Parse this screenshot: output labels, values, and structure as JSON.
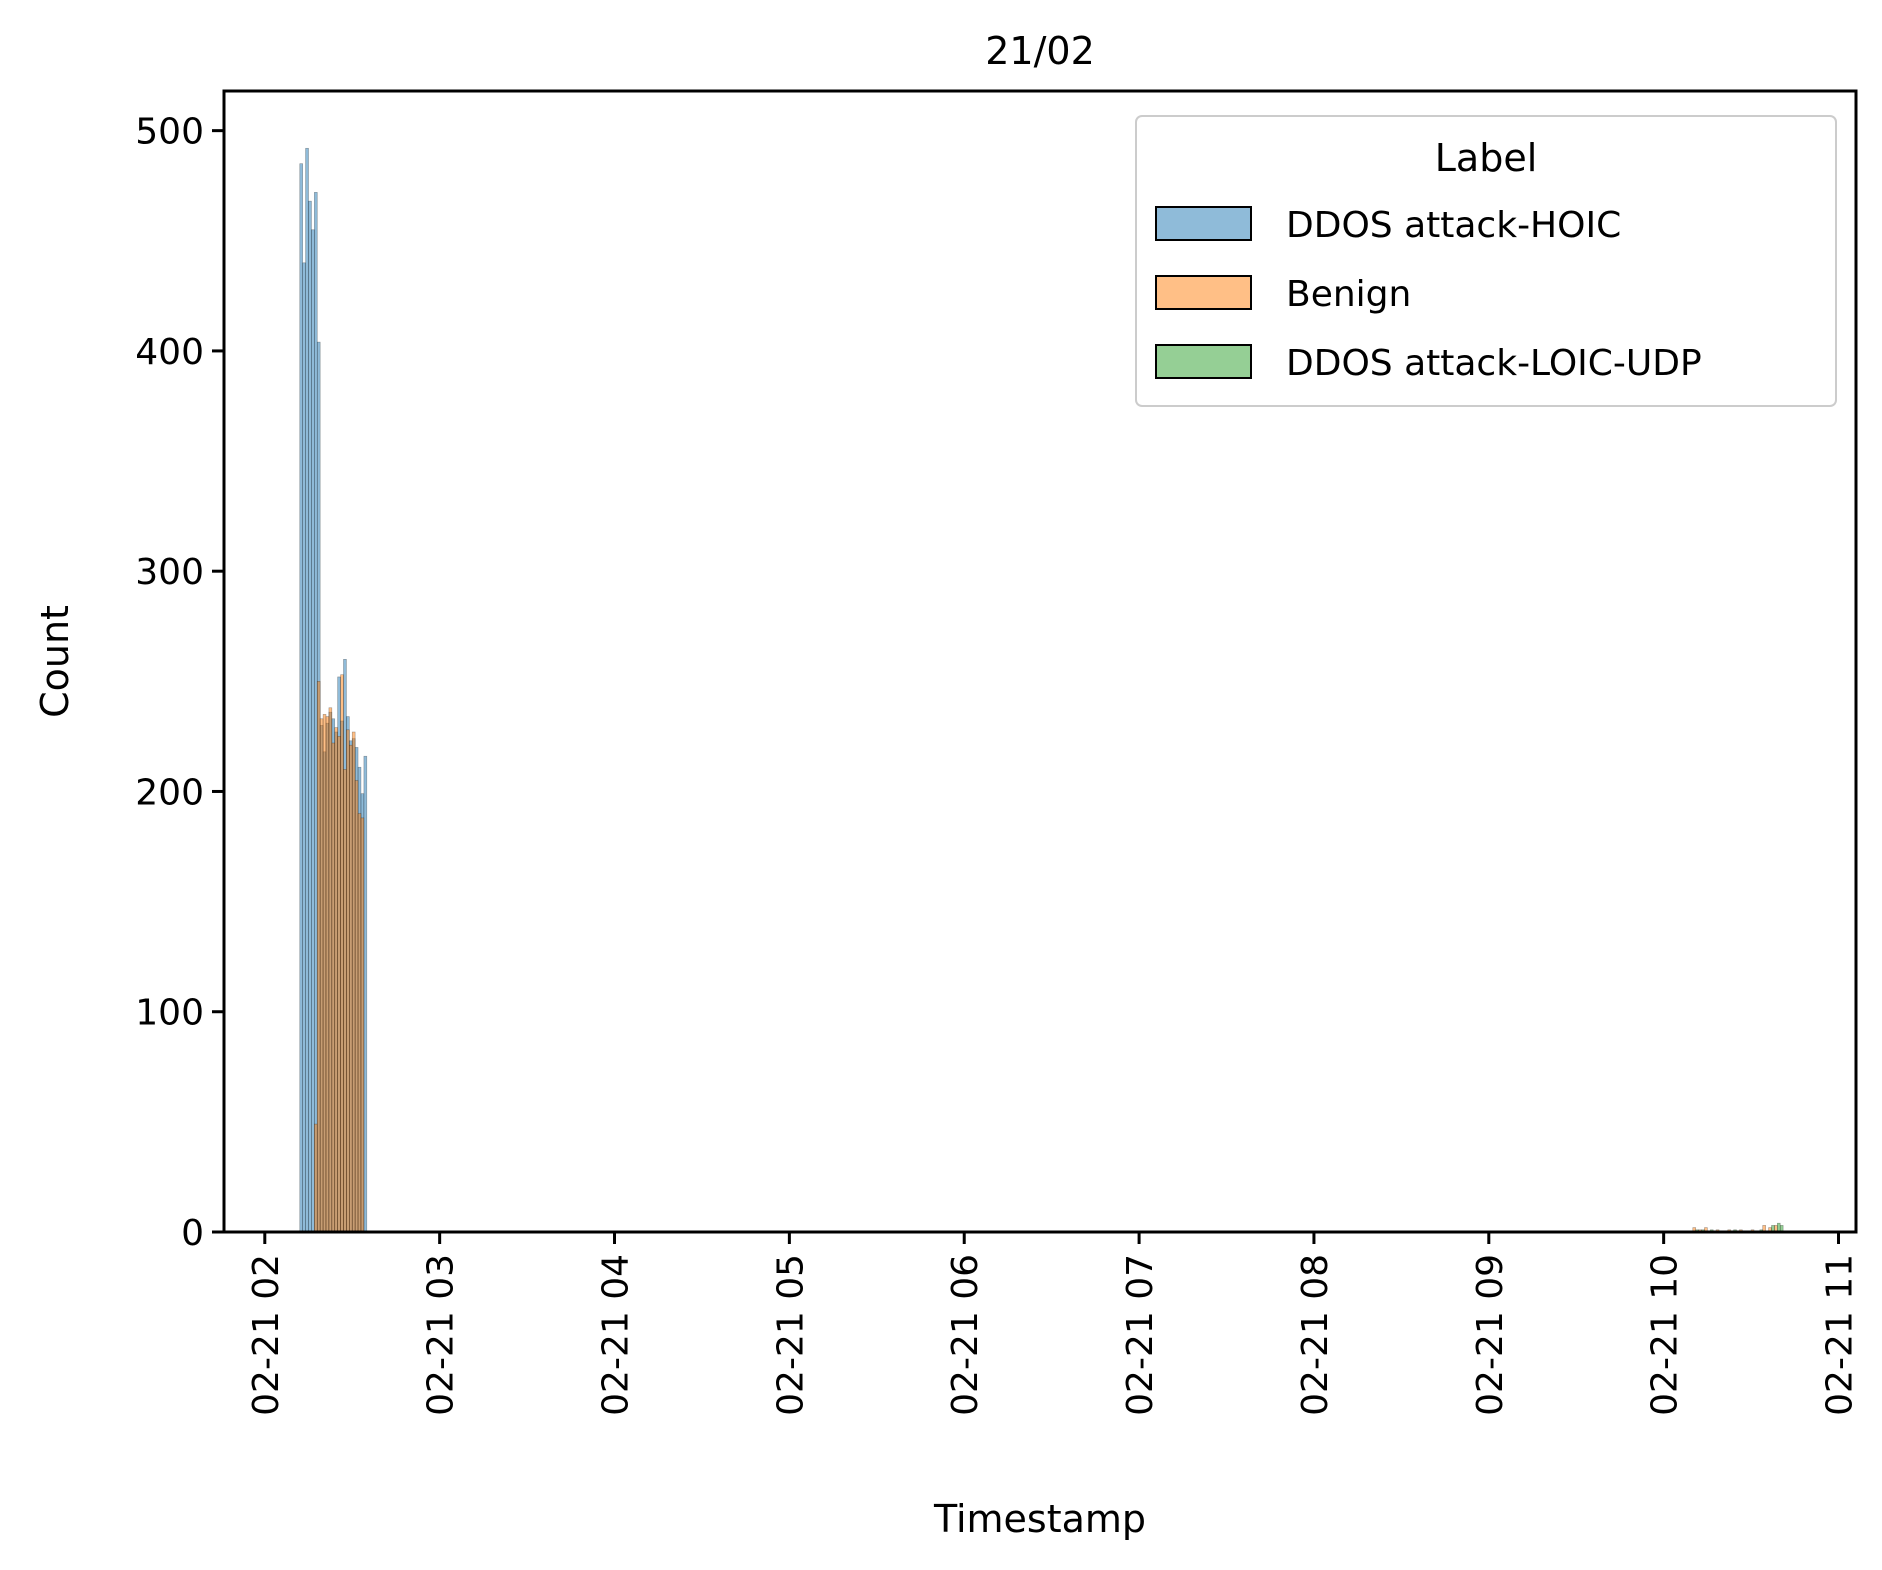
{
  "chart_data": {
    "type": "histogram",
    "title": "21/02",
    "xlabel": "Timestamp",
    "ylabel": "Count",
    "xlim": [
      "2024-02-21 01:46",
      "2024-02-21 11:06"
    ],
    "ylim": [
      0,
      518
    ],
    "x_ticks": [
      "02-21 02",
      "02-21 03",
      "02-21 04",
      "02-21 05",
      "02-21 06",
      "02-21 07",
      "02-21 08",
      "02-21 09",
      "02-21 10",
      "02-21 11"
    ],
    "y_ticks": [
      0,
      100,
      200,
      300,
      400,
      500
    ],
    "bin_minutes": 1,
    "legend": {
      "title": "Label",
      "placement": "top-right"
    },
    "series": [
      {
        "name": "DDOS attack-HOIC",
        "color": "#1f77b4",
        "bins": [
          {
            "t": "2024-02-21 02:12",
            "v": 485
          },
          {
            "t": "2024-02-21 02:13",
            "v": 440
          },
          {
            "t": "2024-02-21 02:14",
            "v": 492
          },
          {
            "t": "2024-02-21 02:15",
            "v": 468
          },
          {
            "t": "2024-02-21 02:16",
            "v": 455
          },
          {
            "t": "2024-02-21 02:17",
            "v": 472
          },
          {
            "t": "2024-02-21 02:18",
            "v": 404
          },
          {
            "t": "2024-02-21 02:19",
            "v": 230
          },
          {
            "t": "2024-02-21 02:20",
            "v": 218
          },
          {
            "t": "2024-02-21 02:21",
            "v": 231
          },
          {
            "t": "2024-02-21 02:22",
            "v": 236
          },
          {
            "t": "2024-02-21 02:23",
            "v": 233
          },
          {
            "t": "2024-02-21 02:24",
            "v": 227
          },
          {
            "t": "2024-02-21 02:25",
            "v": 252
          },
          {
            "t": "2024-02-21 02:26",
            "v": 232
          },
          {
            "t": "2024-02-21 02:27",
            "v": 260
          },
          {
            "t": "2024-02-21 02:28",
            "v": 234
          },
          {
            "t": "2024-02-21 02:29",
            "v": 223
          },
          {
            "t": "2024-02-21 02:30",
            "v": 224
          },
          {
            "t": "2024-02-21 02:31",
            "v": 220
          },
          {
            "t": "2024-02-21 02:32",
            "v": 211
          },
          {
            "t": "2024-02-21 02:33",
            "v": 199
          },
          {
            "t": "2024-02-21 02:34",
            "v": 216
          }
        ]
      },
      {
        "name": "Benign",
        "color": "#ff7f0e",
        "bins": [
          {
            "t": "2024-02-21 02:17",
            "v": 49
          },
          {
            "t": "2024-02-21 02:18",
            "v": 250
          },
          {
            "t": "2024-02-21 02:19",
            "v": 233
          },
          {
            "t": "2024-02-21 02:20",
            "v": 235
          },
          {
            "t": "2024-02-21 02:21",
            "v": 234
          },
          {
            "t": "2024-02-21 02:22",
            "v": 238
          },
          {
            "t": "2024-02-21 02:23",
            "v": 222
          },
          {
            "t": "2024-02-21 02:24",
            "v": 229
          },
          {
            "t": "2024-02-21 02:25",
            "v": 225
          },
          {
            "t": "2024-02-21 02:26",
            "v": 253
          },
          {
            "t": "2024-02-21 02:27",
            "v": 210
          },
          {
            "t": "2024-02-21 02:28",
            "v": 228
          },
          {
            "t": "2024-02-21 02:29",
            "v": 221
          },
          {
            "t": "2024-02-21 02:30",
            "v": 227
          },
          {
            "t": "2024-02-21 02:31",
            "v": 205
          },
          {
            "t": "2024-02-21 02:32",
            "v": 190
          },
          {
            "t": "2024-02-21 02:33",
            "v": 188
          },
          {
            "t": "2024-02-21 10:10",
            "v": 2
          },
          {
            "t": "2024-02-21 10:12",
            "v": 1
          },
          {
            "t": "2024-02-21 10:14",
            "v": 2
          },
          {
            "t": "2024-02-21 10:18",
            "v": 1
          },
          {
            "t": "2024-02-21 10:22",
            "v": 1
          },
          {
            "t": "2024-02-21 10:26",
            "v": 1
          },
          {
            "t": "2024-02-21 10:30",
            "v": 1
          },
          {
            "t": "2024-02-21 10:34",
            "v": 3
          },
          {
            "t": "2024-02-21 10:36",
            "v": 2
          },
          {
            "t": "2024-02-21 10:38",
            "v": 3
          }
        ]
      },
      {
        "name": "DDOS attack-LOIC-UDP",
        "color": "#2ca02c",
        "bins": [
          {
            "t": "2024-02-21 10:11",
            "v": 1
          },
          {
            "t": "2024-02-21 10:13",
            "v": 1
          },
          {
            "t": "2024-02-21 10:16",
            "v": 1
          },
          {
            "t": "2024-02-21 10:24",
            "v": 1
          },
          {
            "t": "2024-02-21 10:33",
            "v": 1
          },
          {
            "t": "2024-02-21 10:37",
            "v": 3
          },
          {
            "t": "2024-02-21 10:39",
            "v": 4
          },
          {
            "t": "2024-02-21 10:40",
            "v": 3
          }
        ]
      }
    ]
  }
}
